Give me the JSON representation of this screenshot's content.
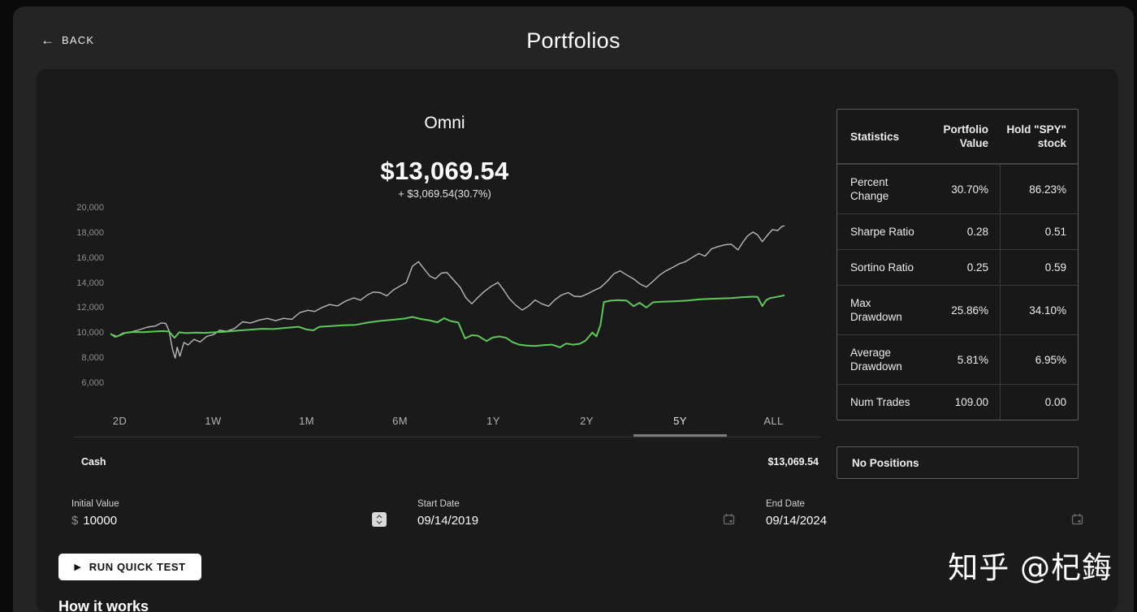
{
  "topbar": {
    "back_label": "BACK",
    "title": "Portfolios"
  },
  "icons": {
    "back_arrow": "←",
    "play": "▶"
  },
  "portfolio": {
    "name": "Omni",
    "current_value": "$13,069.54",
    "change_label": "+ $3,069.54(30.7%)"
  },
  "chart_data": {
    "type": "line",
    "title": "Omni",
    "ylabel": "",
    "xlabel": "",
    "ylim": [
      6000,
      20000
    ],
    "yticks": [
      20000,
      18000,
      16000,
      14000,
      12000,
      10000,
      8000,
      6000
    ],
    "ytick_labels": [
      "20,000",
      "18,000",
      "16,000",
      "14,000",
      "12,000",
      "10,000",
      "8,000",
      "6,000"
    ],
    "x_range": [
      "09/14/2019",
      "09/14/2024"
    ],
    "grid": false,
    "legend_position": "none",
    "series": [
      {
        "name": "Hold SPY stock",
        "color": "#b8b8b8",
        "stroke_width": 1.4,
        "points": [
          [
            0.0,
            10000
          ],
          [
            0.01,
            9780
          ],
          [
            0.018,
            10060
          ],
          [
            0.03,
            10150
          ],
          [
            0.042,
            10310
          ],
          [
            0.055,
            10540
          ],
          [
            0.067,
            10630
          ],
          [
            0.075,
            10870
          ],
          [
            0.082,
            10830
          ],
          [
            0.087,
            10230
          ],
          [
            0.092,
            8760
          ],
          [
            0.096,
            8060
          ],
          [
            0.099,
            8930
          ],
          [
            0.103,
            8210
          ],
          [
            0.109,
            9320
          ],
          [
            0.115,
            9110
          ],
          [
            0.124,
            9560
          ],
          [
            0.133,
            9350
          ],
          [
            0.143,
            9800
          ],
          [
            0.153,
            9940
          ],
          [
            0.162,
            10290
          ],
          [
            0.172,
            10200
          ],
          [
            0.184,
            10420
          ],
          [
            0.196,
            10960
          ],
          [
            0.208,
            10870
          ],
          [
            0.221,
            11100
          ],
          [
            0.233,
            11230
          ],
          [
            0.245,
            11050
          ],
          [
            0.257,
            11240
          ],
          [
            0.269,
            11160
          ],
          [
            0.281,
            11700
          ],
          [
            0.293,
            11880
          ],
          [
            0.303,
            11790
          ],
          [
            0.313,
            12080
          ],
          [
            0.325,
            12340
          ],
          [
            0.337,
            12230
          ],
          [
            0.349,
            12620
          ],
          [
            0.361,
            12870
          ],
          [
            0.371,
            12690
          ],
          [
            0.381,
            13100
          ],
          [
            0.39,
            13340
          ],
          [
            0.4,
            13290
          ],
          [
            0.41,
            13030
          ],
          [
            0.419,
            13480
          ],
          [
            0.429,
            13800
          ],
          [
            0.439,
            14100
          ],
          [
            0.448,
            15400
          ],
          [
            0.457,
            15760
          ],
          [
            0.465,
            15200
          ],
          [
            0.474,
            14600
          ],
          [
            0.482,
            14400
          ],
          [
            0.491,
            14850
          ],
          [
            0.499,
            14900
          ],
          [
            0.509,
            14300
          ],
          [
            0.519,
            13700
          ],
          [
            0.527,
            12900
          ],
          [
            0.536,
            12400
          ],
          [
            0.545,
            12900
          ],
          [
            0.555,
            13400
          ],
          [
            0.565,
            13800
          ],
          [
            0.575,
            14100
          ],
          [
            0.582,
            13600
          ],
          [
            0.592,
            12800
          ],
          [
            0.601,
            12300
          ],
          [
            0.611,
            11900
          ],
          [
            0.62,
            12200
          ],
          [
            0.63,
            12700
          ],
          [
            0.64,
            12400
          ],
          [
            0.65,
            12200
          ],
          [
            0.659,
            12700
          ],
          [
            0.669,
            13100
          ],
          [
            0.679,
            13290
          ],
          [
            0.688,
            13000
          ],
          [
            0.698,
            12970
          ],
          [
            0.708,
            13200
          ],
          [
            0.718,
            13480
          ],
          [
            0.727,
            13700
          ],
          [
            0.737,
            14200
          ],
          [
            0.747,
            14800
          ],
          [
            0.756,
            15030
          ],
          [
            0.766,
            14700
          ],
          [
            0.776,
            14390
          ],
          [
            0.785,
            14000
          ],
          [
            0.795,
            13740
          ],
          [
            0.805,
            14200
          ],
          [
            0.815,
            14700
          ],
          [
            0.824,
            15030
          ],
          [
            0.834,
            15300
          ],
          [
            0.844,
            15600
          ],
          [
            0.853,
            15760
          ],
          [
            0.863,
            16100
          ],
          [
            0.873,
            16410
          ],
          [
            0.882,
            16200
          ],
          [
            0.892,
            16800
          ],
          [
            0.902,
            16970
          ],
          [
            0.911,
            17100
          ],
          [
            0.921,
            17160
          ],
          [
            0.931,
            16700
          ],
          [
            0.938,
            17300
          ],
          [
            0.945,
            17810
          ],
          [
            0.953,
            18130
          ],
          [
            0.96,
            17900
          ],
          [
            0.967,
            17360
          ],
          [
            0.975,
            17900
          ],
          [
            0.982,
            18320
          ],
          [
            0.99,
            18250
          ],
          [
            0.996,
            18580
          ],
          [
            1.0,
            18620
          ]
        ]
      },
      {
        "name": "Portfolio Value",
        "color": "#5fc85a",
        "stroke_width": 2,
        "points": [
          [
            0.0,
            10000
          ],
          [
            0.007,
            9750
          ],
          [
            0.015,
            9900
          ],
          [
            0.022,
            10080
          ],
          [
            0.034,
            10150
          ],
          [
            0.048,
            10130
          ],
          [
            0.063,
            10180
          ],
          [
            0.078,
            10220
          ],
          [
            0.087,
            10180
          ],
          [
            0.095,
            9680
          ],
          [
            0.102,
            10120
          ],
          [
            0.112,
            10060
          ],
          [
            0.126,
            10100
          ],
          [
            0.141,
            10080
          ],
          [
            0.155,
            10120
          ],
          [
            0.17,
            10160
          ],
          [
            0.188,
            10250
          ],
          [
            0.206,
            10320
          ],
          [
            0.224,
            10400
          ],
          [
            0.242,
            10380
          ],
          [
            0.261,
            10480
          ],
          [
            0.279,
            10560
          ],
          [
            0.291,
            10350
          ],
          [
            0.301,
            10280
          ],
          [
            0.31,
            10560
          ],
          [
            0.327,
            10620
          ],
          [
            0.345,
            10680
          ],
          [
            0.364,
            10720
          ],
          [
            0.382,
            10900
          ],
          [
            0.4,
            11030
          ],
          [
            0.418,
            11120
          ],
          [
            0.436,
            11220
          ],
          [
            0.448,
            11350
          ],
          [
            0.461,
            11180
          ],
          [
            0.473,
            11080
          ],
          [
            0.485,
            10920
          ],
          [
            0.495,
            11250
          ],
          [
            0.504,
            11030
          ],
          [
            0.516,
            10900
          ],
          [
            0.526,
            9630
          ],
          [
            0.536,
            9890
          ],
          [
            0.545,
            9850
          ],
          [
            0.558,
            9420
          ],
          [
            0.567,
            9700
          ],
          [
            0.577,
            9790
          ],
          [
            0.587,
            9680
          ],
          [
            0.596,
            9350
          ],
          [
            0.606,
            9140
          ],
          [
            0.618,
            9060
          ],
          [
            0.63,
            9030
          ],
          [
            0.642,
            9100
          ],
          [
            0.655,
            9140
          ],
          [
            0.667,
            8920
          ],
          [
            0.676,
            9230
          ],
          [
            0.686,
            9140
          ],
          [
            0.696,
            9200
          ],
          [
            0.705,
            9460
          ],
          [
            0.715,
            10110
          ],
          [
            0.721,
            9790
          ],
          [
            0.727,
            10710
          ],
          [
            0.732,
            12540
          ],
          [
            0.742,
            12650
          ],
          [
            0.754,
            12690
          ],
          [
            0.766,
            12650
          ],
          [
            0.776,
            12210
          ],
          [
            0.785,
            12480
          ],
          [
            0.795,
            12100
          ],
          [
            0.805,
            12520
          ],
          [
            0.818,
            12560
          ],
          [
            0.836,
            12600
          ],
          [
            0.855,
            12650
          ],
          [
            0.873,
            12750
          ],
          [
            0.891,
            12800
          ],
          [
            0.909,
            12830
          ],
          [
            0.921,
            12860
          ],
          [
            0.936,
            12920
          ],
          [
            0.952,
            12970
          ],
          [
            0.96,
            12950
          ],
          [
            0.967,
            12210
          ],
          [
            0.973,
            12700
          ],
          [
            0.979,
            12860
          ],
          [
            0.988,
            12950
          ],
          [
            1.0,
            13070
          ]
        ]
      }
    ]
  },
  "tabs": {
    "items": [
      "2D",
      "1W",
      "1M",
      "6M",
      "1Y",
      "2Y",
      "5Y",
      "ALL"
    ],
    "selected": "5Y"
  },
  "cash": {
    "label": "Cash",
    "value": "$13,069.54"
  },
  "form": {
    "initial_value": {
      "label": "Initial Value",
      "prefix": "$",
      "value": "10000"
    },
    "start_date": {
      "label": "Start Date",
      "value": "09/14/2019"
    },
    "end_date": {
      "label": "End Date",
      "value": "09/14/2024"
    }
  },
  "actions": {
    "run_quick_test": "RUN QUICK TEST"
  },
  "sections": {
    "how_it_works": "How it works"
  },
  "stats": {
    "headers": {
      "col_label": "Statistics",
      "col_portfolio": "Portfolio Value",
      "col_spy": "Hold \"SPY\" stock"
    },
    "rows": [
      {
        "label": "Percent Change",
        "portfolio": "30.70%",
        "spy": "86.23%"
      },
      {
        "label": "Sharpe Ratio",
        "portfolio": "0.28",
        "spy": "0.51"
      },
      {
        "label": "Sortino Ratio",
        "portfolio": "0.25",
        "spy": "0.59"
      },
      {
        "label": "Max Drawdown",
        "portfolio": "25.86%",
        "spy": "34.10%"
      },
      {
        "label": "Average Drawdown",
        "portfolio": "5.81%",
        "spy": "6.95%"
      },
      {
        "label": "Num Trades",
        "portfolio": "109.00",
        "spy": "0.00"
      }
    ],
    "no_positions": "No Positions"
  },
  "watermark": "知乎 @杞鋂",
  "colors": {
    "background": "#0a0a0a",
    "panel": "#242425",
    "card": "#1a1a1a",
    "portfolio_line": "#5fc85a",
    "benchmark_line": "#b8b8b8",
    "run_button_bg": "#ffffff"
  }
}
